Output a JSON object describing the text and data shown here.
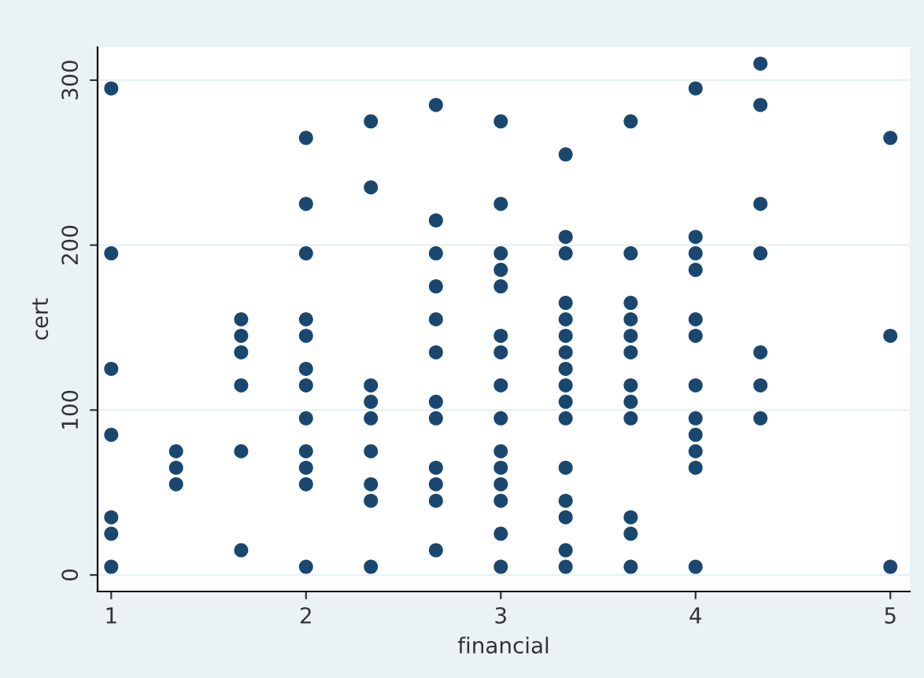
{
  "chart_data": {
    "type": "scatter",
    "xlabel": "financial",
    "ylabel": "cert",
    "color": "#1a476f",
    "marker": "circle",
    "grid": "y",
    "legend": false,
    "x": [
      1,
      1,
      1,
      1,
      1,
      1,
      1,
      1.333,
      1.333,
      1.333,
      1.667,
      1.667,
      1.667,
      1.667,
      1.667,
      1.667,
      2,
      2,
      2,
      2,
      2,
      2,
      2,
      2,
      2,
      2,
      2,
      2,
      2.333,
      2.333,
      2.333,
      2.333,
      2.333,
      2.333,
      2.333,
      2.333,
      2.333,
      2.667,
      2.667,
      2.667,
      2.667,
      2.667,
      2.667,
      2.667,
      2.667,
      2.667,
      2.667,
      2.667,
      2.667,
      3,
      3,
      3,
      3,
      3,
      3,
      3,
      3,
      3,
      3,
      3,
      3,
      3,
      3,
      3,
      3.333,
      3.333,
      3.333,
      3.333,
      3.333,
      3.333,
      3.333,
      3.333,
      3.333,
      3.333,
      3.333,
      3.333,
      3.333,
      3.333,
      3.333,
      3.333,
      3.667,
      3.667,
      3.667,
      3.667,
      3.667,
      3.667,
      3.667,
      3.667,
      3.667,
      3.667,
      3.667,
      3.667,
      4,
      4,
      4,
      4,
      4,
      4,
      4,
      4,
      4,
      4,
      4,
      4,
      4.333,
      4.333,
      4.333,
      4.333,
      4.333,
      4.333,
      4.333,
      5,
      5,
      5
    ],
    "values": [
      295,
      195,
      125,
      85,
      35,
      25,
      5,
      75,
      65,
      55,
      155,
      145,
      135,
      115,
      75,
      15,
      265,
      225,
      195,
      155,
      145,
      125,
      115,
      95,
      75,
      65,
      55,
      5,
      275,
      235,
      115,
      105,
      95,
      75,
      55,
      45,
      5,
      285,
      215,
      195,
      175,
      155,
      135,
      105,
      95,
      65,
      55,
      45,
      15,
      275,
      225,
      195,
      185,
      175,
      145,
      135,
      115,
      95,
      75,
      65,
      55,
      45,
      25,
      5,
      255,
      205,
      195,
      165,
      155,
      145,
      135,
      125,
      115,
      105,
      95,
      65,
      45,
      35,
      15,
      5,
      275,
      195,
      165,
      155,
      145,
      135,
      115,
      105,
      95,
      35,
      25,
      5,
      295,
      205,
      195,
      185,
      155,
      145,
      115,
      95,
      85,
      75,
      65,
      5,
      310,
      285,
      225,
      195,
      135,
      115,
      95,
      265,
      145,
      5
    ],
    "xlim": [
      0.93,
      5.1
    ],
    "ylim": [
      -10,
      320
    ],
    "xticks": [
      1,
      2,
      3,
      4,
      5
    ],
    "yticks": [
      0,
      100,
      200,
      300
    ]
  }
}
